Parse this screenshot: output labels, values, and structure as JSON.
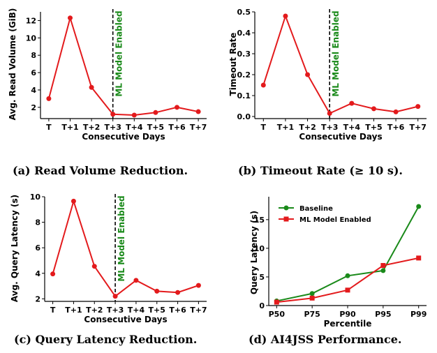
{
  "chart_data": [
    {
      "id": "a",
      "type": "line",
      "caption": "(a) Read Volume Reduction.",
      "xlabel": "Consecutive Days",
      "ylabel": "Avg. Read Volume (GiB)",
      "categories": [
        "T",
        "T+1",
        "T+2",
        "T+3",
        "T+4",
        "T+5",
        "T+6",
        "T+7"
      ],
      "series": [
        {
          "values": [
            3.0,
            12.3,
            4.3,
            1.2,
            1.1,
            1.4,
            2.0,
            1.5
          ],
          "color": "#e31a1c"
        }
      ],
      "ylim": [
        0.7,
        13.0
      ],
      "yticks": [
        2,
        4,
        6,
        8,
        10,
        12
      ],
      "marker_line_at": "T+3",
      "annotation": "ML Model Enabled"
    },
    {
      "id": "b",
      "type": "line",
      "caption": "(b) Timeout Rate (≥ 10 s).",
      "xlabel": "Consecutive Days",
      "ylabel": "Timeout Rate",
      "categories": [
        "T",
        "T+1",
        "T+2",
        "T+3",
        "T+4",
        "T+5",
        "T+6",
        "T+7"
      ],
      "series": [
        {
          "values": [
            0.15,
            0.48,
            0.2,
            0.015,
            0.063,
            0.037,
            0.022,
            0.048
          ],
          "color": "#e31a1c"
        }
      ],
      "ylim": [
        -0.01,
        0.5
      ],
      "yticks": [
        0.0,
        0.1,
        0.2,
        0.3,
        0.4,
        0.5
      ],
      "tick_labels": [
        "0.0",
        "0.1",
        "0.2",
        "0.3",
        "0.4",
        "0.5"
      ],
      "marker_line_at": "T+3",
      "annotation": "ML Model Enabled"
    },
    {
      "id": "c",
      "type": "line",
      "caption": "(c) Query Latency Reduction.",
      "xlabel": "Consecutive Days",
      "ylabel": "Avg. Query Latency (s)",
      "categories": [
        "T",
        "T+1",
        "T+2",
        "T+3",
        "T+4",
        "T+5",
        "T+6",
        "T+7"
      ],
      "series": [
        {
          "values": [
            3.95,
            9.65,
            4.55,
            2.2,
            3.45,
            2.6,
            2.5,
            3.05
          ],
          "color": "#e31a1c"
        }
      ],
      "ylim": [
        1.8,
        10.0
      ],
      "yticks": [
        2,
        4,
        6,
        8,
        10
      ],
      "marker_line_at": "T+3",
      "annotation": "ML Model Enabled"
    },
    {
      "id": "d",
      "type": "line",
      "caption": "(d) AI4JSS Performance.",
      "xlabel": "Percentile",
      "ylabel": "Query Latency (s)",
      "categories": [
        "P50",
        "P75",
        "P90",
        "P95",
        "P99"
      ],
      "series": [
        {
          "name": "Baseline",
          "values": [
            0.8,
            2.1,
            5.2,
            6.1,
            17.3
          ],
          "color": "#1a8a1a",
          "marker": "circle"
        },
        {
          "name": "ML Model Enabled",
          "values": [
            0.6,
            1.3,
            2.7,
            7.0,
            8.3
          ],
          "color": "#e31a1c",
          "marker": "square"
        }
      ],
      "ylim": [
        0,
        19
      ],
      "yticks": [
        0,
        5,
        10,
        15
      ],
      "legend": "top-left"
    }
  ]
}
